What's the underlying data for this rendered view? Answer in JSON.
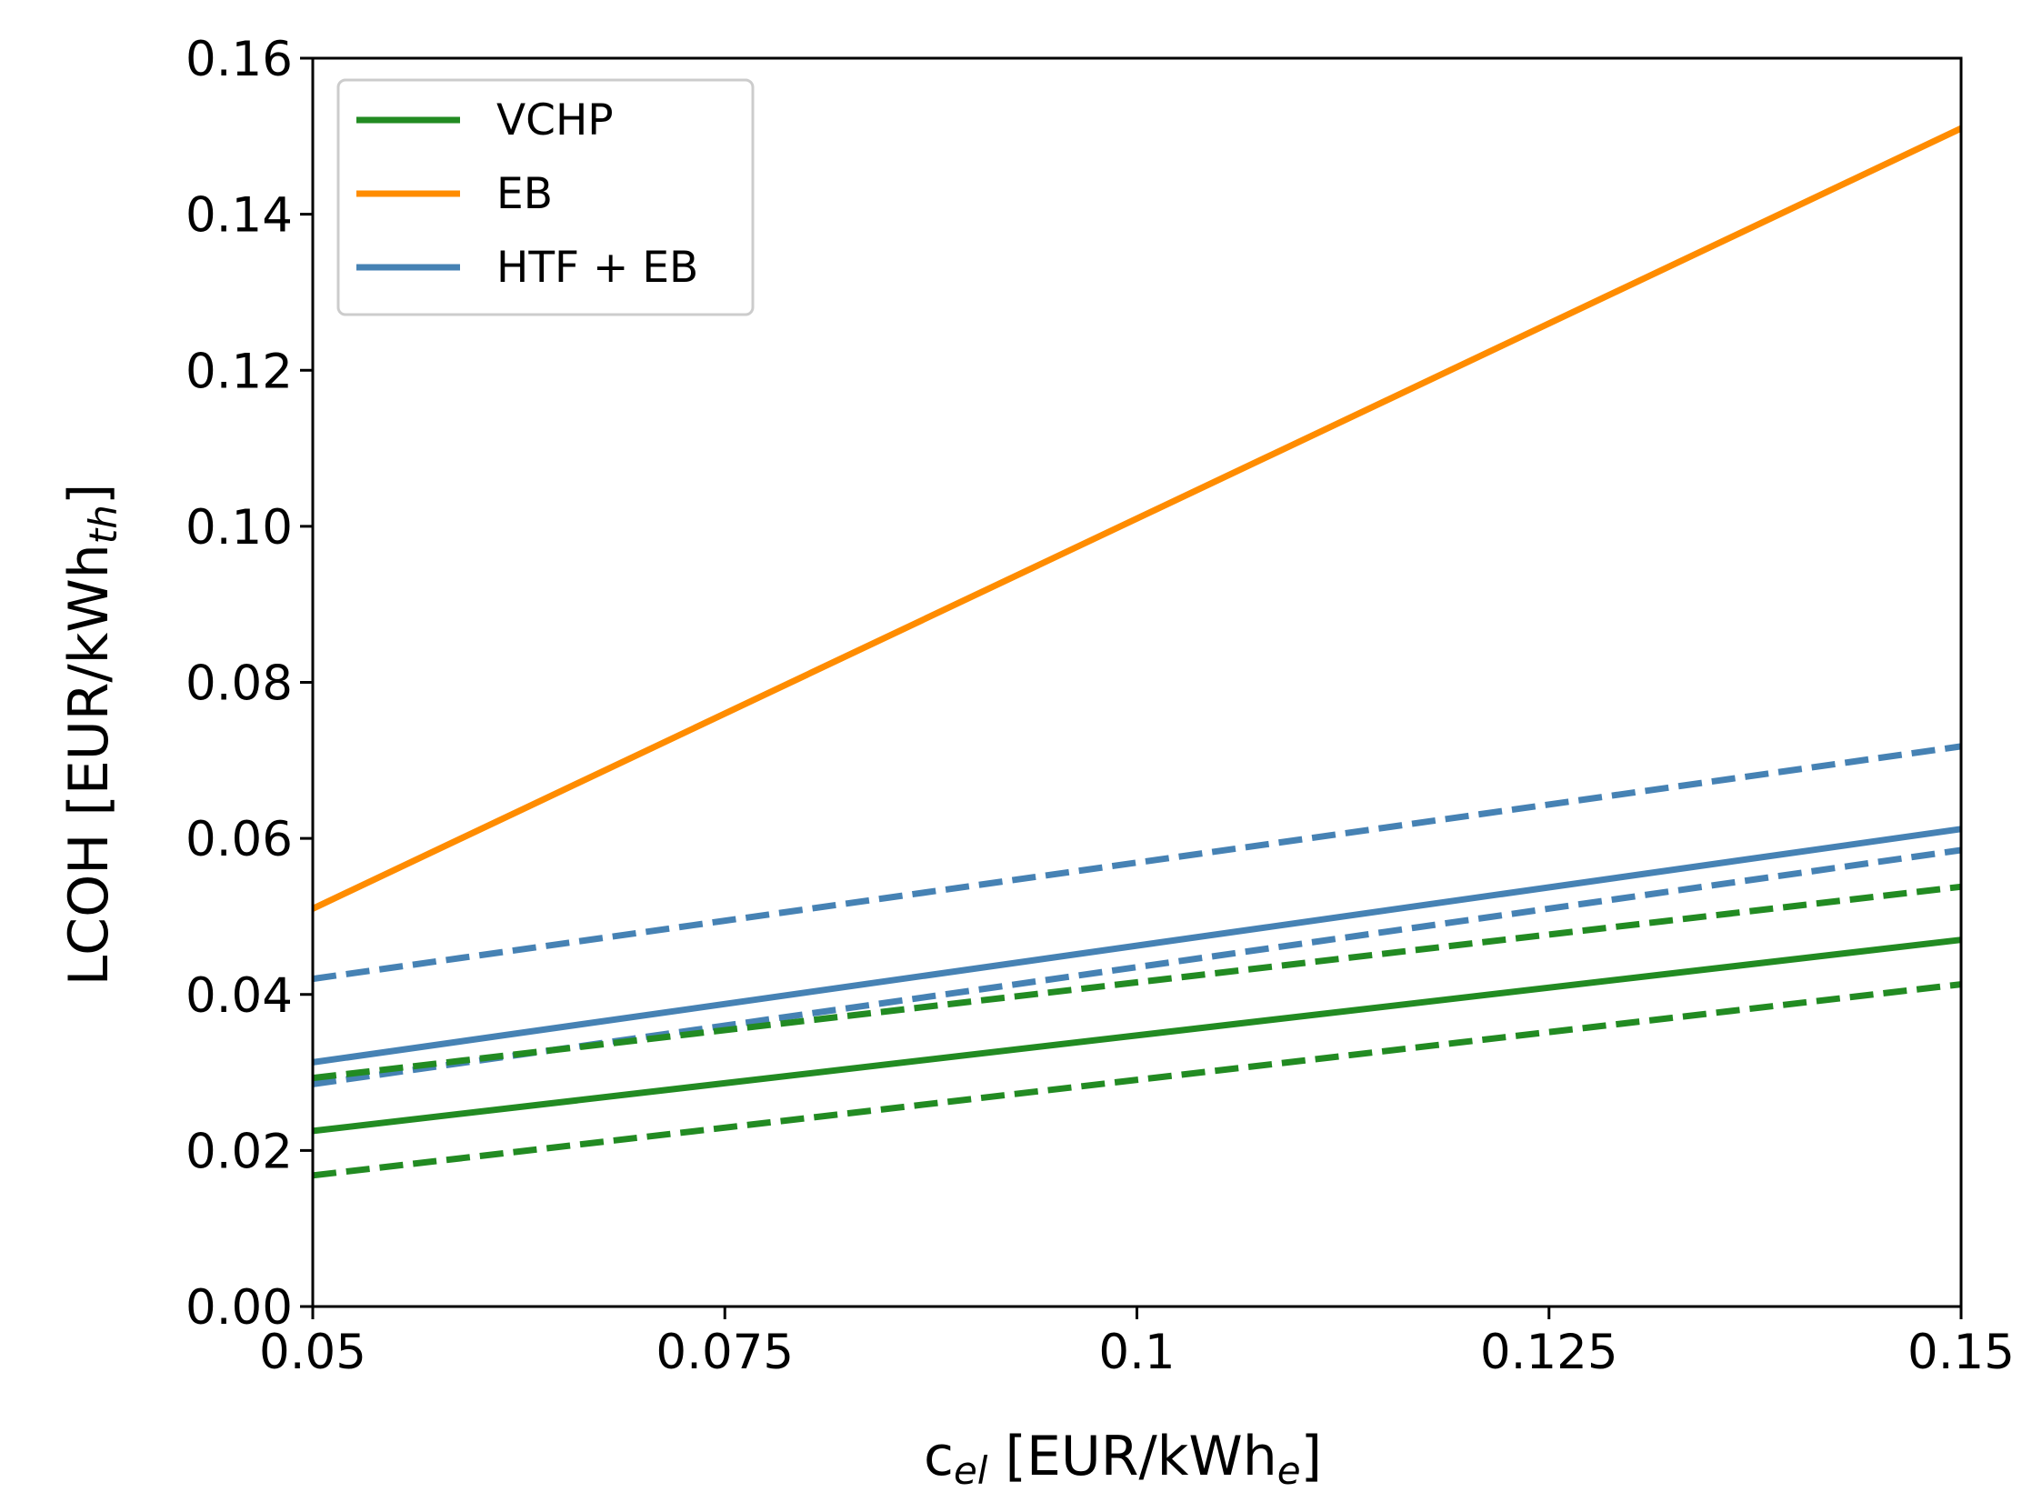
{
  "chart_data": {
    "type": "line",
    "title": "",
    "xlabel": {
      "base": "c",
      "sub": "el",
      "rest": " [EUR/kWh",
      "sub2": "e",
      "close": "]"
    },
    "ylabel": {
      "base": "LCOH [EUR/kWh",
      "sub": "th",
      "close": "]"
    },
    "xlim": [
      0.05,
      0.15
    ],
    "ylim": [
      0.0,
      0.16
    ],
    "xticks": [
      0.05,
      0.075,
      0.1,
      0.125,
      0.15
    ],
    "xtick_labels": [
      "0.05",
      "0.075",
      "0.1",
      "0.125",
      "0.15"
    ],
    "yticks": [
      0.0,
      0.02,
      0.04,
      0.06,
      0.08,
      0.1,
      0.12,
      0.14,
      0.16
    ],
    "ytick_labels": [
      "0.00",
      "0.02",
      "0.04",
      "0.06",
      "0.08",
      "0.10",
      "0.12",
      "0.14",
      "0.16"
    ],
    "grid": false,
    "legend_position": "top-left",
    "legend": [
      {
        "label": "VCHP",
        "color": "#228b22"
      },
      {
        "label": "EB",
        "color": "#ff8c00"
      },
      {
        "label": "HTF + EB",
        "color": "#4682b4"
      }
    ],
    "series": [
      {
        "name": "EB",
        "style": "solid",
        "color": "#ff8c00",
        "x": [
          0.05,
          0.15
        ],
        "y": [
          0.051,
          0.151
        ]
      },
      {
        "name": "HTF + EB upper",
        "style": "dashed",
        "color": "#4682b4",
        "x": [
          0.05,
          0.15
        ],
        "y": [
          0.042,
          0.0718
        ]
      },
      {
        "name": "HTF + EB",
        "style": "solid",
        "color": "#4682b4",
        "x": [
          0.05,
          0.15
        ],
        "y": [
          0.0313,
          0.0612
        ]
      },
      {
        "name": "HTF + EB lower",
        "style": "dashed",
        "color": "#4682b4",
        "x": [
          0.05,
          0.15
        ],
        "y": [
          0.0285,
          0.0585
        ]
      },
      {
        "name": "VCHP upper",
        "style": "dashed",
        "color": "#228b22",
        "x": [
          0.05,
          0.15
        ],
        "y": [
          0.0293,
          0.0538
        ]
      },
      {
        "name": "VCHP",
        "style": "solid",
        "color": "#228b22",
        "x": [
          0.05,
          0.15
        ],
        "y": [
          0.0225,
          0.047
        ]
      },
      {
        "name": "VCHP lower",
        "style": "dashed",
        "color": "#228b22",
        "x": [
          0.05,
          0.15
        ],
        "y": [
          0.0168,
          0.0413
        ]
      }
    ]
  }
}
